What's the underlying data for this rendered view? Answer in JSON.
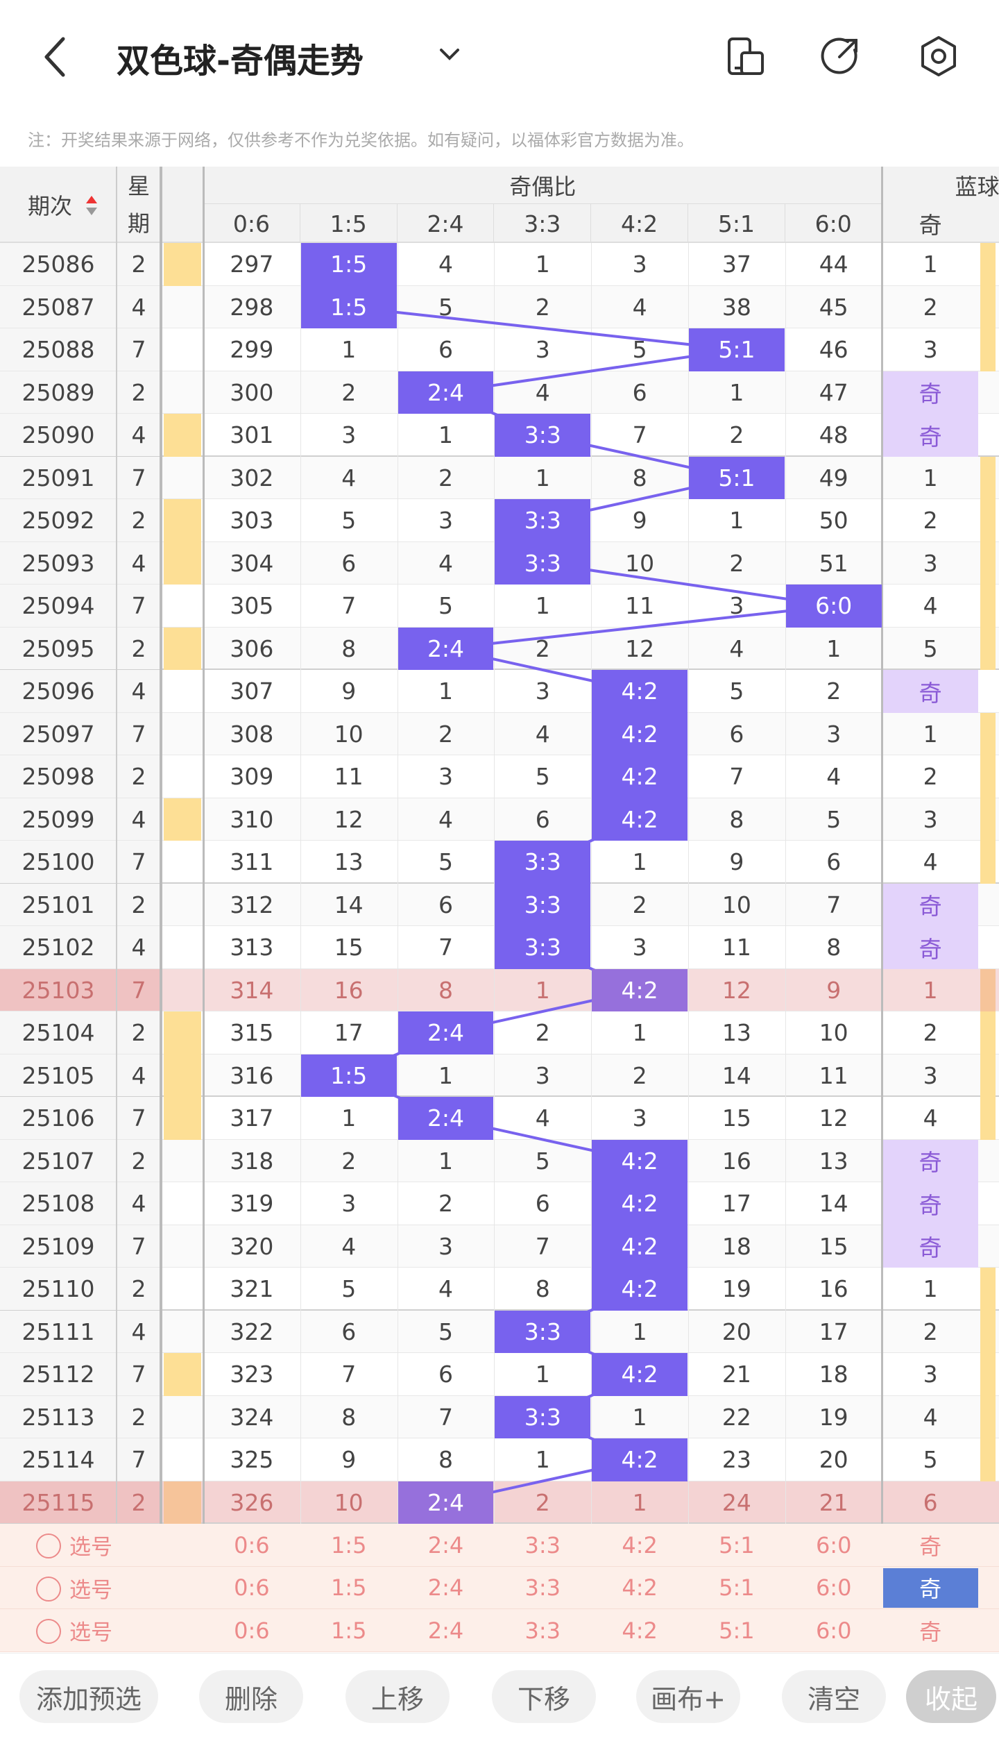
{
  "header": {
    "title": "双色球-奇偶走势"
  },
  "note": "注：开奖结果来源于网络，仅供参考不作为兑奖依据。如有疑问，以福体彩官方数据为准。",
  "table": {
    "columns": {
      "period": "期次",
      "weekday": "星期",
      "ratio_group": "奇偶比",
      "blue_group": "蓝球"
    },
    "ratio_columns": [
      "0:6",
      "1:5",
      "2:4",
      "3:3",
      "4:2",
      "5:1",
      "6:0"
    ],
    "blue_columns": [
      "奇"
    ],
    "rows": [
      [
        25086,
        2,
        297,
        "1:5",
        4,
        1,
        3,
        37,
        44,
        1
      ],
      [
        25087,
        4,
        298,
        "1:5",
        5,
        2,
        4,
        38,
        45,
        2
      ],
      [
        25088,
        7,
        299,
        1,
        6,
        3,
        5,
        "5:1",
        46,
        3
      ],
      [
        25089,
        2,
        300,
        2,
        "2:4",
        4,
        6,
        1,
        47,
        "奇"
      ],
      [
        25090,
        4,
        301,
        3,
        1,
        "3:3",
        7,
        2,
        48,
        "奇"
      ],
      [
        25091,
        7,
        302,
        4,
        2,
        1,
        8,
        "5:1",
        49,
        1
      ],
      [
        25092,
        2,
        303,
        5,
        3,
        "3:3",
        9,
        1,
        50,
        2
      ],
      [
        25093,
        4,
        304,
        6,
        4,
        "3:3",
        10,
        2,
        51,
        3
      ],
      [
        25094,
        7,
        305,
        7,
        5,
        1,
        11,
        3,
        "6:0",
        4
      ],
      [
        25095,
        2,
        306,
        8,
        "2:4",
        2,
        12,
        4,
        1,
        5
      ],
      [
        25096,
        4,
        307,
        9,
        1,
        3,
        "4:2",
        5,
        2,
        "奇"
      ],
      [
        25097,
        7,
        308,
        10,
        2,
        4,
        "4:2",
        6,
        3,
        1
      ],
      [
        25098,
        2,
        309,
        11,
        3,
        5,
        "4:2",
        7,
        4,
        2
      ],
      [
        25099,
        4,
        310,
        12,
        4,
        6,
        "4:2",
        8,
        5,
        3
      ],
      [
        25100,
        7,
        311,
        13,
        5,
        "3:3",
        1,
        9,
        6,
        4
      ],
      [
        25101,
        2,
        312,
        14,
        6,
        "3:3",
        2,
        10,
        7,
        "奇"
      ],
      [
        25102,
        4,
        313,
        15,
        7,
        "3:3",
        3,
        11,
        8,
        "奇"
      ],
      [
        25103,
        7,
        314,
        16,
        8,
        1,
        "4:2",
        12,
        9,
        1
      ],
      [
        25104,
        2,
        315,
        17,
        "2:4",
        2,
        1,
        13,
        10,
        2
      ],
      [
        25105,
        4,
        316,
        "1:5",
        1,
        3,
        2,
        14,
        11,
        3
      ],
      [
        25106,
        7,
        317,
        1,
        "2:4",
        4,
        3,
        15,
        12,
        4
      ],
      [
        25107,
        2,
        318,
        2,
        1,
        5,
        "4:2",
        16,
        13,
        "奇"
      ],
      [
        25108,
        4,
        319,
        3,
        2,
        6,
        "4:2",
        17,
        14,
        "奇"
      ],
      [
        25109,
        7,
        320,
        4,
        3,
        7,
        "4:2",
        18,
        15,
        "奇"
      ],
      [
        25110,
        2,
        321,
        5,
        4,
        8,
        "4:2",
        19,
        16,
        1
      ],
      [
        25111,
        4,
        322,
        6,
        5,
        "3:3",
        1,
        20,
        17,
        2
      ],
      [
        25112,
        7,
        323,
        7,
        6,
        1,
        "4:2",
        21,
        18,
        3
      ],
      [
        25113,
        2,
        324,
        8,
        7,
        "3:3",
        1,
        22,
        19,
        4
      ],
      [
        25114,
        7,
        325,
        9,
        8,
        1,
        "4:2",
        23,
        20,
        5
      ],
      [
        25115,
        2,
        326,
        10,
        "2:4",
        2,
        1,
        24,
        21,
        6
      ]
    ],
    "predict_label": "选号"
  },
  "buttons": [
    "添加预选",
    "删除",
    "上移",
    "下移",
    "画布+",
    "清空",
    "收起"
  ]
}
